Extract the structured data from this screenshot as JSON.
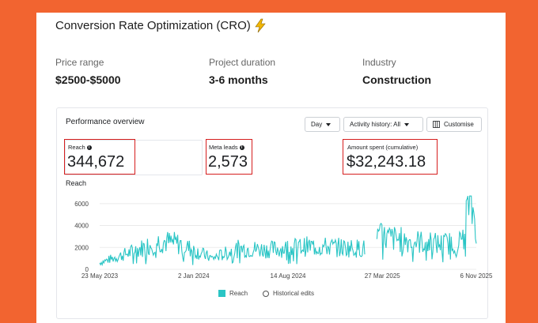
{
  "header": {
    "title": "Conversion Rate Optimization (CRO)",
    "icon": "lightning-bolt-icon"
  },
  "details": [
    {
      "label": "Price range",
      "value": "$2500-$5000"
    },
    {
      "label": "Project duration",
      "value": "3-6 months"
    },
    {
      "label": "Industry",
      "value": "Construction"
    }
  ],
  "panel": {
    "title": "Performance overview",
    "controls": {
      "period": "Day",
      "history": "Activity history: All",
      "customise": "Customise"
    },
    "metrics": {
      "reach": {
        "label": "Reach",
        "value": "344,672"
      },
      "leads": {
        "label": "Meta leads",
        "value": "2,573"
      },
      "spent": {
        "label": "Amount spent (cumulative)",
        "value": "$32,243.18"
      }
    },
    "chart_label": "Reach",
    "legend": {
      "reach": "Reach",
      "historical": "Historical edits"
    }
  },
  "colors": {
    "background": "#f26430",
    "series": "#2ac5c5",
    "highlight": "#d61e1e"
  },
  "chart_data": {
    "type": "line",
    "title": "Reach",
    "x_tick_labels": [
      "23 May 2023",
      "2 Jan 2024",
      "14 Aug 2024",
      "27 Mar 2025",
      "6 Nov 2025"
    ],
    "y_ticks": [
      0,
      2000,
      4000,
      6000
    ],
    "ylim": [
      0,
      7000
    ],
    "grid": true,
    "legend": "bottom",
    "series": [
      {
        "name": "Reach",
        "x_segments": [
          [
            "2023-05-23",
            "2025-02-13"
          ],
          [
            "2025-03-14",
            "2025-11-06"
          ]
        ],
        "approx_levels": [
          {
            "x": "2023-05-23",
            "y": 600
          },
          {
            "x": "2023-08-01",
            "y": 1500
          },
          {
            "x": "2023-10-15",
            "y": 2600
          },
          {
            "x": "2023-12-01",
            "y": 2300
          },
          {
            "x": "2024-02-15",
            "y": 1000
          },
          {
            "x": "2024-04-20",
            "y": 1900
          },
          {
            "x": "2024-07-01",
            "y": 1800
          },
          {
            "x": "2024-10-01",
            "y": 2100
          },
          {
            "x": "2024-12-15",
            "y": 2000
          },
          {
            "x": "2025-02-13",
            "y": 1900
          },
          {
            "x": "2025-03-14",
            "y": 3000
          },
          {
            "x": "2025-06-01",
            "y": 2600
          },
          {
            "x": "2025-08-15",
            "y": 2300
          },
          {
            "x": "2025-10-01",
            "y": 2500
          },
          {
            "x": "2025-10-20",
            "y": 6500
          },
          {
            "x": "2025-11-06",
            "y": 4200
          }
        ]
      }
    ]
  }
}
